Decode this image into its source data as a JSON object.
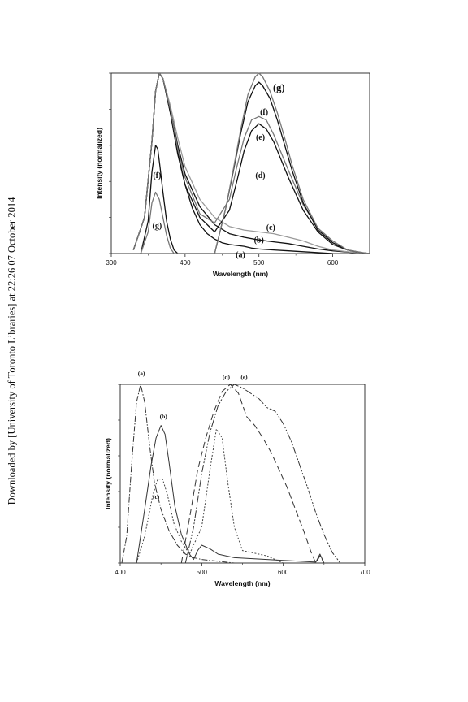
{
  "side_note": "Downloaded by [University of Toronto Libraries] at 22:26 07 October 2014",
  "chart_data": [
    {
      "type": "line",
      "xlabel": "Wavelength (nm)",
      "ylabel": "Intensity (normalized)",
      "xlim": [
        300,
        650
      ],
      "ylim": [
        0,
        1.0
      ],
      "xticks": [
        "300",
        "400",
        "500",
        "600"
      ],
      "grid": false,
      "series": [
        {
          "name": "(a)",
          "color": "#111111",
          "x": [
            330,
            345,
            355,
            360,
            365,
            370,
            380,
            390,
            400,
            410,
            420,
            430,
            440,
            450,
            460,
            470,
            480,
            490,
            500,
            520,
            540,
            560,
            580,
            600
          ],
          "values": [
            0.02,
            0.2,
            0.62,
            0.9,
            1.0,
            0.97,
            0.78,
            0.56,
            0.38,
            0.25,
            0.16,
            0.11,
            0.08,
            0.06,
            0.05,
            0.045,
            0.04,
            0.03,
            0.025,
            0.02,
            0.015,
            0.01,
            0.005,
            0.0
          ]
        },
        {
          "name": "(b)",
          "color": "#111111",
          "x": [
            330,
            345,
            355,
            360,
            365,
            370,
            380,
            390,
            400,
            420,
            440,
            460,
            480,
            500,
            520,
            540,
            560,
            580,
            600,
            620,
            640
          ],
          "values": [
            0.02,
            0.2,
            0.62,
            0.9,
            1.0,
            0.97,
            0.8,
            0.6,
            0.44,
            0.26,
            0.16,
            0.11,
            0.09,
            0.075,
            0.065,
            0.055,
            0.04,
            0.025,
            0.015,
            0.008,
            0.0
          ]
        },
        {
          "name": "(c)",
          "color": "#9a9a9a",
          "x": [
            330,
            345,
            355,
            360,
            365,
            370,
            380,
            390,
            400,
            420,
            440,
            460,
            480,
            500,
            520,
            540,
            560,
            580,
            600,
            620,
            640
          ],
          "values": [
            0.02,
            0.2,
            0.62,
            0.9,
            1.0,
            0.97,
            0.82,
            0.64,
            0.48,
            0.3,
            0.2,
            0.15,
            0.13,
            0.12,
            0.11,
            0.09,
            0.07,
            0.04,
            0.02,
            0.01,
            0.0
          ]
        },
        {
          "name": "(d)",
          "color": "#111111",
          "x": [
            330,
            345,
            355,
            360,
            365,
            370,
            380,
            390,
            400,
            420,
            440,
            460,
            470,
            480,
            490,
            500,
            510,
            520,
            530,
            540,
            560,
            580,
            600,
            620,
            640
          ],
          "values": [
            0.02,
            0.2,
            0.62,
            0.9,
            1.0,
            0.97,
            0.78,
            0.55,
            0.38,
            0.2,
            0.12,
            0.24,
            0.4,
            0.57,
            0.68,
            0.72,
            0.69,
            0.62,
            0.52,
            0.42,
            0.24,
            0.12,
            0.05,
            0.02,
            0.0
          ]
        },
        {
          "name": "(e)",
          "color": "#777777",
          "x": [
            330,
            345,
            355,
            360,
            365,
            370,
            380,
            390,
            400,
            420,
            440,
            460,
            470,
            480,
            490,
            500,
            510,
            520,
            530,
            540,
            560,
            580,
            600,
            620,
            640
          ],
          "values": [
            0.02,
            0.2,
            0.62,
            0.9,
            1.0,
            0.97,
            0.8,
            0.58,
            0.42,
            0.22,
            0.17,
            0.3,
            0.48,
            0.64,
            0.74,
            0.76,
            0.74,
            0.66,
            0.56,
            0.46,
            0.27,
            0.14,
            0.06,
            0.02,
            0.0
          ]
        },
        {
          "name": "(f)",
          "color": "#111111",
          "x": [
            340,
            350,
            355,
            360,
            363,
            366,
            370,
            375,
            380,
            385,
            390,
            440,
            455,
            465,
            475,
            485,
            495,
            500,
            505,
            515,
            525,
            535,
            545,
            560,
            580,
            600,
            620,
            640,
            650
          ],
          "values": [
            0.0,
            0.18,
            0.45,
            0.6,
            0.58,
            0.48,
            0.34,
            0.18,
            0.08,
            0.02,
            0.0,
            0.0,
            0.25,
            0.45,
            0.66,
            0.84,
            0.93,
            0.95,
            0.93,
            0.86,
            0.74,
            0.6,
            0.46,
            0.28,
            0.13,
            0.06,
            0.02,
            0.005,
            0.0
          ]
        },
        {
          "name": "(g)",
          "color": "#777777",
          "x": [
            340,
            350,
            355,
            360,
            365,
            370,
            375,
            380,
            385,
            390,
            440,
            455,
            465,
            475,
            485,
            495,
            500,
            505,
            515,
            525,
            535,
            545,
            560,
            580,
            600,
            620,
            640,
            650
          ],
          "values": [
            0.0,
            0.12,
            0.28,
            0.34,
            0.3,
            0.2,
            0.1,
            0.03,
            0.0,
            0.0,
            0.0,
            0.25,
            0.46,
            0.68,
            0.88,
            0.98,
            1.0,
            0.98,
            0.9,
            0.78,
            0.64,
            0.49,
            0.3,
            0.14,
            0.07,
            0.02,
            0.005,
            0.0
          ]
        }
      ],
      "labels": [
        {
          "text": "(g)",
          "x": 527,
          "y": 0.9
        },
        {
          "text": "(f)",
          "x": 507,
          "y": 0.77
        },
        {
          "text": "(e)",
          "x": 502,
          "y": 0.63
        },
        {
          "text": "(d)",
          "x": 502,
          "y": 0.42
        },
        {
          "text": "(c)",
          "x": 516,
          "y": 0.13
        },
        {
          "text": "(b)",
          "x": 500,
          "y": 0.06
        },
        {
          "text": "(a)",
          "x": 475,
          "y": -0.02
        },
        {
          "text": "(f)",
          "x": 362,
          "y": 0.42
        },
        {
          "text": "(g)",
          "x": 362,
          "y": 0.14
        }
      ]
    },
    {
      "type": "line",
      "xlabel": "Wavelength (nm)",
      "ylabel": "Intensity (normalized)",
      "xlim": [
        400,
        700
      ],
      "ylim": [
        0,
        1.0
      ],
      "xticks": [
        "400",
        "500",
        "600",
        "700"
      ],
      "grid": false,
      "series": [
        {
          "name": "(a)",
          "color": "#333333",
          "dash": "7 2 1.5 2",
          "x": [
            402,
            408,
            414,
            420,
            425,
            430,
            436,
            442,
            450,
            460,
            470,
            480,
            490,
            500,
            520,
            540
          ],
          "values": [
            0.0,
            0.15,
            0.55,
            0.9,
            1.0,
            0.9,
            0.66,
            0.45,
            0.3,
            0.18,
            0.1,
            0.05,
            0.03,
            0.02,
            0.01,
            0.0
          ]
        },
        {
          "name": "(b)",
          "color": "#333333",
          "dash": "none",
          "x": [
            420,
            430,
            438,
            444,
            450,
            455,
            460,
            467,
            475,
            485,
            490,
            495,
            500,
            510,
            520,
            530,
            540,
            560,
            580,
            600,
            620,
            640,
            645,
            650,
            655
          ],
          "values": [
            0.0,
            0.3,
            0.55,
            0.7,
            0.77,
            0.72,
            0.56,
            0.32,
            0.16,
            0.05,
            0.02,
            0.07,
            0.1,
            0.08,
            0.05,
            0.04,
            0.03,
            0.025,
            0.02,
            0.015,
            0.01,
            0.005,
            0.05,
            0.0,
            0.0
          ]
        },
        {
          "name": "(c)",
          "color": "#444444",
          "dash": "2 2",
          "x": [
            420,
            430,
            440,
            446,
            452,
            458,
            466,
            475,
            485,
            500,
            510,
            518,
            525,
            532,
            540,
            550,
            560,
            570,
            580,
            590,
            600
          ],
          "values": [
            0.0,
            0.15,
            0.38,
            0.47,
            0.47,
            0.38,
            0.22,
            0.12,
            0.05,
            0.2,
            0.52,
            0.75,
            0.7,
            0.45,
            0.2,
            0.07,
            0.06,
            0.05,
            0.04,
            0.02,
            0.0
          ]
        },
        {
          "name": "(d)",
          "color": "#333333",
          "dash": "8 4",
          "x": [
            475,
            485,
            495,
            505,
            515,
            525,
            535,
            545,
            555,
            565,
            575,
            585,
            595,
            605,
            615,
            625,
            635,
            640,
            645,
            650
          ],
          "values": [
            0.0,
            0.25,
            0.52,
            0.7,
            0.85,
            0.96,
            1.0,
            0.95,
            0.82,
            0.77,
            0.7,
            0.62,
            0.52,
            0.42,
            0.3,
            0.18,
            0.05,
            0.0,
            0.04,
            0.0
          ]
        },
        {
          "name": "(e)",
          "color": "#333333",
          "dash": "9 2 2 2 2 2",
          "x": [
            480,
            490,
            500,
            510,
            520,
            530,
            540,
            550,
            560,
            570,
            580,
            590,
            600,
            610,
            620,
            630,
            640,
            650,
            660,
            670
          ],
          "values": [
            0.0,
            0.2,
            0.5,
            0.73,
            0.88,
            0.96,
            1.0,
            0.98,
            0.95,
            0.92,
            0.87,
            0.85,
            0.78,
            0.68,
            0.55,
            0.42,
            0.28,
            0.16,
            0.06,
            0.0
          ]
        }
      ],
      "labels": [
        {
          "text": "(a)",
          "x": 426,
          "y": 1.05
        },
        {
          "text": "(b)",
          "x": 453,
          "y": 0.81
        },
        {
          "text": "(c)",
          "x": 444,
          "y": 0.36
        },
        {
          "text": "(d)",
          "x": 530,
          "y": 1.03
        },
        {
          "text": "(e)",
          "x": 552,
          "y": 1.03
        }
      ]
    }
  ]
}
